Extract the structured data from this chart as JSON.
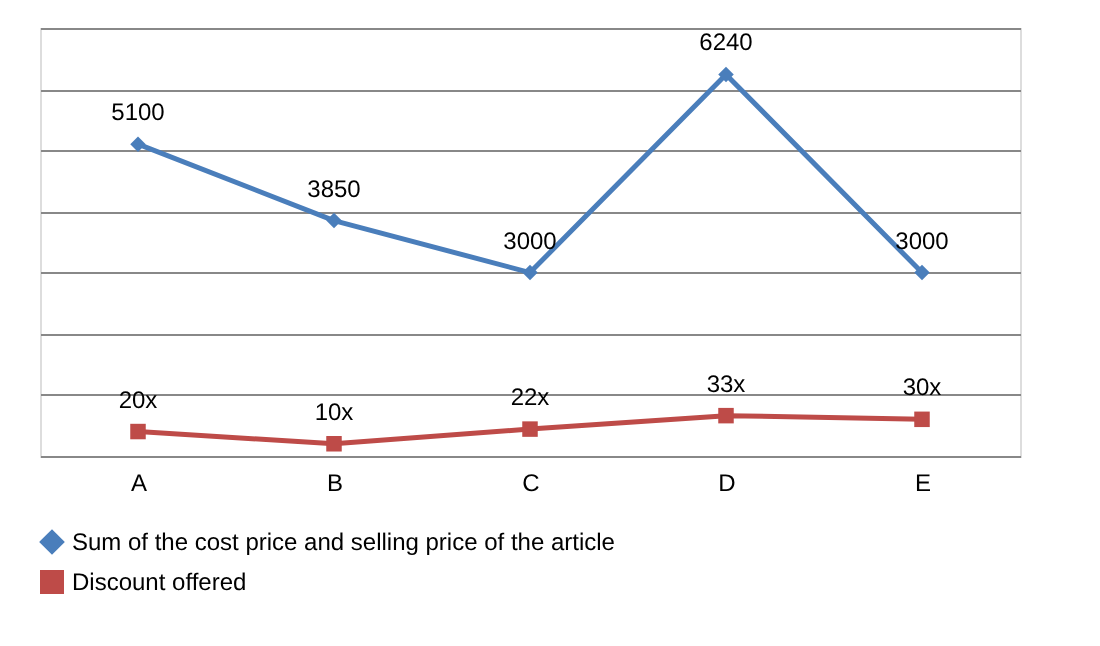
{
  "chart_data": {
    "type": "line",
    "categories": [
      "A",
      "B",
      "C",
      "D",
      "E"
    ],
    "series": [
      {
        "name": "Sum of the cost price and selling price of the article",
        "color": "#4a7ebb",
        "marker": "diamond",
        "values": [
          5100,
          3850,
          3000,
          6240,
          3000
        ],
        "value_labels": [
          "5100",
          "3850",
          "3000",
          "6240",
          "3000"
        ]
      },
      {
        "name": "Discount offered",
        "color": "#be4b48",
        "marker": "square",
        "axis": "y2",
        "values": [
          20,
          10,
          22,
          33,
          30
        ],
        "value_labels": [
          "20x",
          "10x",
          "22x",
          "33x",
          "30x"
        ]
      }
    ],
    "ylim": [
      0,
      7000
    ],
    "y2lim": [
      0,
      350
    ],
    "tick_labels": "x",
    "grid": "y",
    "legend": "bottom",
    "line_style": "solid"
  }
}
